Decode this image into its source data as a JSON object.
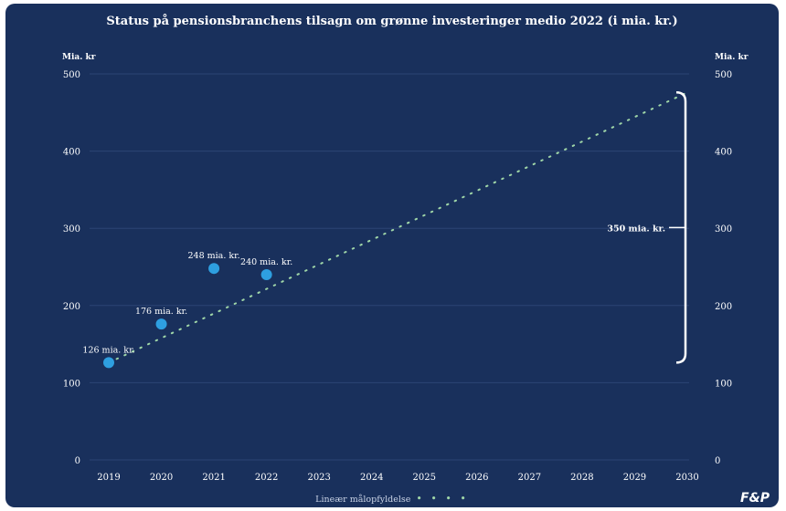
{
  "chart_data": {
    "type": "scatter",
    "title": "Status på pensionsbranchens tilsagn om grønne investeringer medio 2022 (i mia. kr.)",
    "y_unit_left": "Mia. kr",
    "y_unit_right": "Mia. kr",
    "ylim": [
      0,
      500
    ],
    "y_ticks": [
      "0",
      "100",
      "200",
      "300",
      "400",
      "500"
    ],
    "x_ticks": [
      "2019",
      "2020",
      "2021",
      "2022",
      "2023",
      "2024",
      "2025",
      "2026",
      "2027",
      "2028",
      "2029",
      "2030"
    ],
    "points": [
      {
        "x": "2019",
        "y": 126,
        "label": "126 mia. kr."
      },
      {
        "x": "2020",
        "y": 176,
        "label": "176 mia. kr."
      },
      {
        "x": "2021",
        "y": 248,
        "label": "248 mia. kr."
      },
      {
        "x": "2022",
        "y": 240,
        "label": "240 mia. kr."
      }
    ],
    "target_line": {
      "name": "Lineær målopfyldelse",
      "from": {
        "x": "2019",
        "y": 126
      },
      "to": {
        "x": "2030",
        "y": 476
      }
    },
    "bracket": {
      "label": "350 mia. kr.",
      "from": 126,
      "to": 476
    },
    "grid": true,
    "legend": "bottom-center",
    "colors": {
      "background": "#19305c",
      "points": "#2e9fe0",
      "target_line": "#9fd6a8",
      "grid": "#2c4474",
      "text": "#ffffff"
    }
  },
  "legend_text": "Lineær målopfyldelse",
  "legend_dots": "• • • •",
  "logo": "F&P"
}
